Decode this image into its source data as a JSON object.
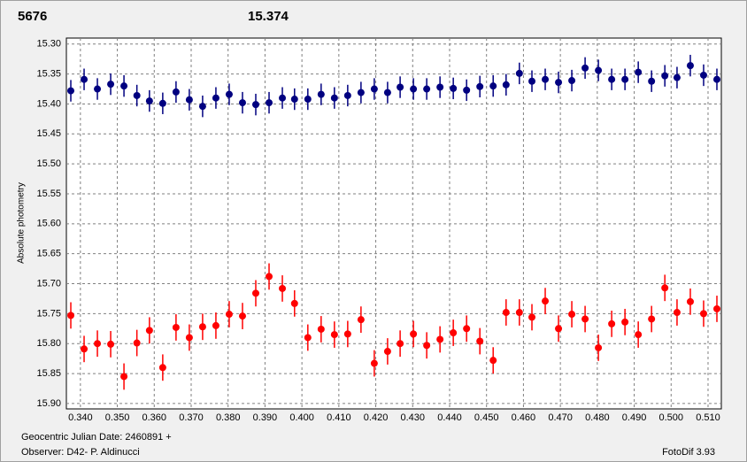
{
  "chart_data": {
    "type": "scatter",
    "header_labels": [
      {
        "text": "5676",
        "color": "#ff0000"
      },
      {
        "text": "15.374",
        "color": "#000080"
      }
    ],
    "ylabel": "Absolute photometry",
    "footer": {
      "date_label": "Geocentric Julian Date: 2460891 +",
      "observer": "Observer: D42- P. Aldinucci",
      "software": "FotoDif 3.93"
    },
    "y_inverted": true,
    "grid": true,
    "xlim": [
      0.3362,
      0.5136
    ],
    "ylim": [
      15.29,
      15.909
    ],
    "xticks": [
      {
        "value": 0.34,
        "label": "0.340"
      },
      {
        "value": 0.35,
        "label": "0.350"
      },
      {
        "value": 0.36,
        "label": "0.360"
      },
      {
        "value": 0.37,
        "label": "0.370"
      },
      {
        "value": 0.38,
        "label": "0.380"
      },
      {
        "value": 0.39,
        "label": "0.390"
      },
      {
        "value": 0.4,
        "label": "0.400"
      },
      {
        "value": 0.41,
        "label": "0.410"
      },
      {
        "value": 0.42,
        "label": "0.420"
      },
      {
        "value": 0.43,
        "label": "0.430"
      },
      {
        "value": 0.44,
        "label": "0.440"
      },
      {
        "value": 0.45,
        "label": "0.450"
      },
      {
        "value": 0.46,
        "label": "0.460"
      },
      {
        "value": 0.47,
        "label": "0.470"
      },
      {
        "value": 0.48,
        "label": "0.480"
      },
      {
        "value": 0.49,
        "label": "0.490"
      },
      {
        "value": 0.5,
        "label": "0.500"
      },
      {
        "value": 0.51,
        "label": "0.510"
      }
    ],
    "yticks": [
      {
        "value": 15.3,
        "label": "15.30"
      },
      {
        "value": 15.35,
        "label": "15.35"
      },
      {
        "value": 15.4,
        "label": "15.40"
      },
      {
        "value": 15.45,
        "label": "15.45"
      },
      {
        "value": 15.5,
        "label": "15.50"
      },
      {
        "value": 15.55,
        "label": "15.55"
      },
      {
        "value": 15.6,
        "label": "15.60"
      },
      {
        "value": 15.65,
        "label": "15.65"
      },
      {
        "value": 15.7,
        "label": "15.70"
      },
      {
        "value": 15.75,
        "label": "15.75"
      },
      {
        "value": 15.8,
        "label": "15.80"
      },
      {
        "value": 15.85,
        "label": "15.85"
      },
      {
        "value": 15.9,
        "label": "15.90"
      }
    ],
    "x": [
      0.3374,
      0.341,
      0.3446,
      0.3482,
      0.3518,
      0.3553,
      0.3587,
      0.3623,
      0.3659,
      0.3695,
      0.3731,
      0.3767,
      0.3803,
      0.3839,
      0.3875,
      0.3911,
      0.3947,
      0.398,
      0.4016,
      0.4052,
      0.4088,
      0.4124,
      0.416,
      0.4196,
      0.4232,
      0.4266,
      0.4302,
      0.4338,
      0.4374,
      0.441,
      0.4446,
      0.4482,
      0.4518,
      0.4553,
      0.4589,
      0.4623,
      0.4659,
      0.4695,
      0.4731,
      0.4767,
      0.4803,
      0.4839,
      0.4875,
      0.4911,
      0.4947,
      0.4983,
      0.5016,
      0.5052,
      0.5088,
      0.5124
    ],
    "series": [
      {
        "color": "#000080",
        "error": 0.018,
        "values": [
          15.378,
          15.359,
          15.375,
          15.367,
          15.37,
          15.386,
          15.395,
          15.399,
          15.38,
          15.393,
          15.404,
          15.39,
          15.384,
          15.398,
          15.401,
          15.398,
          15.39,
          15.392,
          15.392,
          15.384,
          15.39,
          15.386,
          15.381,
          15.375,
          15.381,
          15.372,
          15.375,
          15.375,
          15.372,
          15.374,
          15.377,
          15.371,
          15.37,
          15.368,
          15.349,
          15.362,
          15.359,
          15.364,
          15.361,
          15.34,
          15.344,
          15.359,
          15.359,
          15.347,
          15.362,
          15.353,
          15.356,
          15.336,
          15.352,
          15.359
        ]
      },
      {
        "color": "#ff0000",
        "error": 0.022,
        "values": [
          15.753,
          15.809,
          15.8,
          15.801,
          15.855,
          15.799,
          15.778,
          15.84,
          15.773,
          15.79,
          15.772,
          15.77,
          15.751,
          15.754,
          15.716,
          15.688,
          15.708,
          15.733,
          15.79,
          15.776,
          15.785,
          15.784,
          15.76,
          15.833,
          15.813,
          15.8,
          15.784,
          15.803,
          15.793,
          15.782,
          15.775,
          15.796,
          15.828,
          15.748,
          15.748,
          15.756,
          15.729,
          15.775,
          15.751,
          15.759,
          15.807,
          15.767,
          15.764,
          15.785,
          15.759,
          15.707,
          15.748,
          15.73,
          15.75,
          15.742
        ]
      }
    ]
  }
}
